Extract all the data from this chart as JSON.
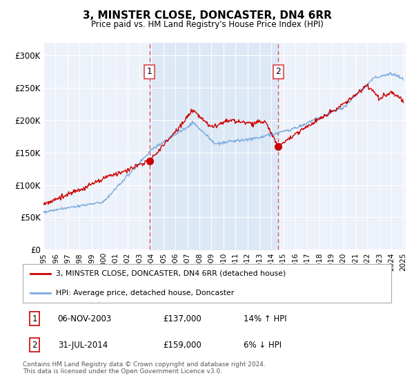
{
  "title": "3, MINSTER CLOSE, DONCASTER, DN4 6RR",
  "subtitle": "Price paid vs. HM Land Registry's House Price Index (HPI)",
  "ylim": [
    0,
    320000
  ],
  "yticks": [
    0,
    50000,
    100000,
    150000,
    200000,
    250000,
    300000
  ],
  "ytick_labels": [
    "£0",
    "£50K",
    "£100K",
    "£150K",
    "£200K",
    "£250K",
    "£300K"
  ],
  "sale1_date_num": 2003.85,
  "sale1_price": 137000,
  "sale2_date_num": 2014.58,
  "sale2_price": 159000,
  "red_line_color": "#cc0000",
  "blue_line_color": "#7aaadd",
  "shaded_region_color": "#dce8f5",
  "dashed_line_color": "#dd4444",
  "legend_label_red": "3, MINSTER CLOSE, DONCASTER, DN4 6RR (detached house)",
  "legend_label_blue": "HPI: Average price, detached house, Doncaster",
  "table_row1": [
    "1",
    "06-NOV-2003",
    "£137,000",
    "14% ↑ HPI"
  ],
  "table_row2": [
    "2",
    "31-JUL-2014",
    "£159,000",
    "6% ↓ HPI"
  ],
  "footnote": "Contains HM Land Registry data © Crown copyright and database right 2024.\nThis data is licensed under the Open Government Licence v3.0.",
  "background_color": "#ffffff",
  "plot_bg_color": "#edf2fa"
}
